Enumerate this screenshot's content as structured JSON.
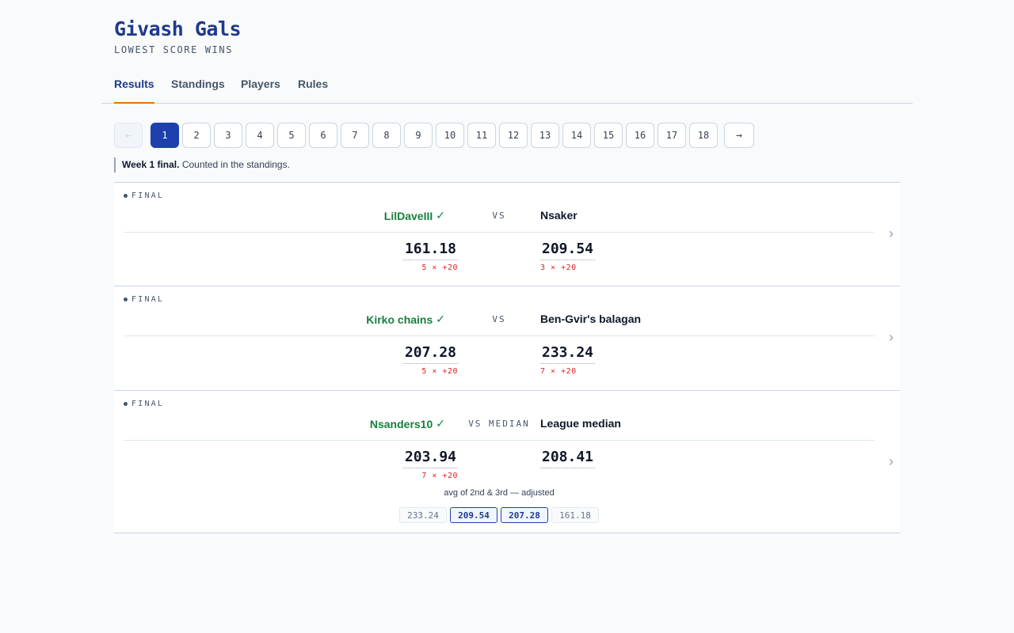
{
  "header": {
    "title": "Givash Gals",
    "tagline": "LOWEST SCORE WINS"
  },
  "tabs": [
    {
      "label": "Results",
      "active": true
    },
    {
      "label": "Standings",
      "active": false
    },
    {
      "label": "Players",
      "active": false
    },
    {
      "label": "Rules",
      "active": false
    }
  ],
  "pager": {
    "prev": "←",
    "next": "→",
    "weeks": [
      "1",
      "2",
      "3",
      "4",
      "5",
      "6",
      "7",
      "8",
      "9",
      "10",
      "11",
      "12",
      "13",
      "14",
      "15",
      "16",
      "17",
      "18"
    ],
    "current": "1"
  },
  "notice": {
    "bold": "Week 1 final.",
    "text": "Counted in the standings."
  },
  "matches": [
    {
      "status": "FINAL",
      "vs": "VS",
      "winner_icon": "✓",
      "left": {
        "name": "LilDaveIII",
        "score": "161.18",
        "penalty": "5 × +20",
        "winner": true
      },
      "right": {
        "name": "Nsaker",
        "score": "209.54",
        "penalty": "3 × +20",
        "winner": false
      }
    },
    {
      "status": "FINAL",
      "vs": "VS",
      "winner_icon": "✓",
      "left": {
        "name": "Kirko chains",
        "score": "207.28",
        "penalty": "5 × +20",
        "winner": true
      },
      "right": {
        "name": "Ben-Gvir's balagan",
        "score": "233.24",
        "penalty": "7 × +20",
        "winner": false
      }
    },
    {
      "status": "FINAL",
      "vs": "VS MEDIAN",
      "winner_icon": "✓",
      "left": {
        "name": "Nsanders10",
        "score": "203.94",
        "penalty": "7 × +20",
        "winner": true
      },
      "right": {
        "name": "League median",
        "score": "208.41",
        "penalty": "",
        "winner": false
      },
      "median_note": "avg of 2nd & 3rd — adjusted",
      "median_scores": [
        {
          "value": "233.24",
          "used": false
        },
        {
          "value": "209.54",
          "used": true
        },
        {
          "value": "207.28",
          "used": true
        },
        {
          "value": "161.18",
          "used": false
        }
      ]
    }
  ],
  "icons": {
    "chevron": "chevron-right-icon",
    "check": "check-icon",
    "dot": "status-dot-icon"
  },
  "colors": {
    "brand": "#1e3a8a",
    "accent": "#d97706",
    "winner": "#15803d",
    "penalty": "#dc2626",
    "active_page": "#1e40af"
  }
}
